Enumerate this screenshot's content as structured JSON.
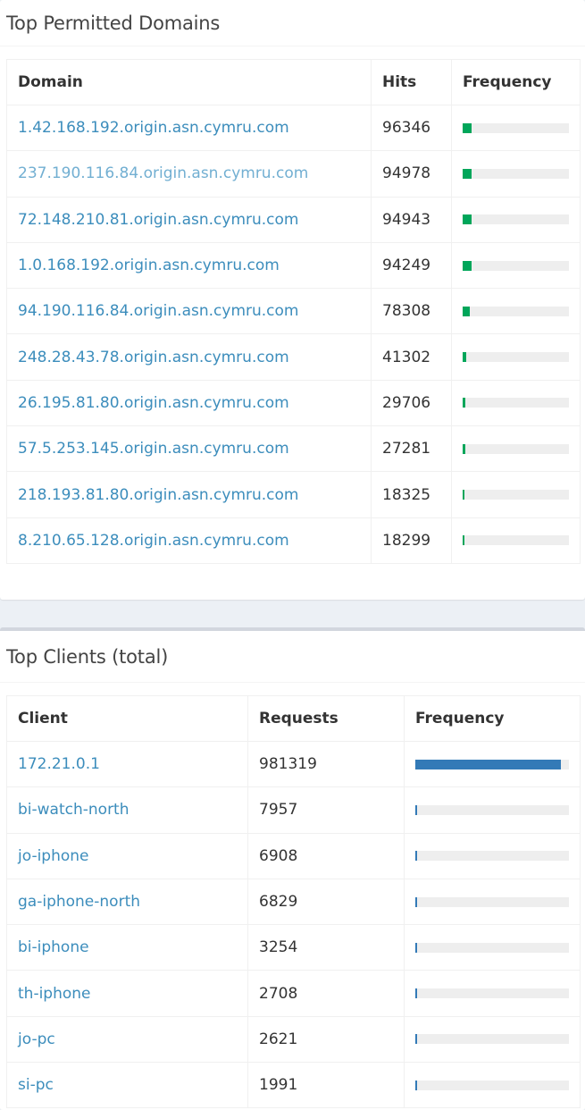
{
  "domains": {
    "title": "Top Permitted Domains",
    "columns": [
      "Domain",
      "Hits",
      "Frequency"
    ],
    "rows": [
      {
        "domain": "1.42.168.192.origin.asn.cymru.com",
        "hits": "96346",
        "frequency_pct": 8.6
      },
      {
        "domain": "237.190.116.84.origin.asn.cymru.com",
        "hits": "94978",
        "frequency_pct": 8.5
      },
      {
        "domain": "72.148.210.81.origin.asn.cymru.com",
        "hits": "94943",
        "frequency_pct": 8.5
      },
      {
        "domain": "1.0.168.192.origin.asn.cymru.com",
        "hits": "94249",
        "frequency_pct": 8.4
      },
      {
        "domain": "94.190.116.84.origin.asn.cymru.com",
        "hits": "78308",
        "frequency_pct": 7.0
      },
      {
        "domain": "248.28.43.78.origin.asn.cymru.com",
        "hits": "41302",
        "frequency_pct": 3.7
      },
      {
        "domain": "26.195.81.80.origin.asn.cymru.com",
        "hits": "29706",
        "frequency_pct": 2.7
      },
      {
        "domain": "57.5.253.145.origin.asn.cymru.com",
        "hits": "27281",
        "frequency_pct": 2.4
      },
      {
        "domain": "218.193.81.80.origin.asn.cymru.com",
        "hits": "18325",
        "frequency_pct": 1.6
      },
      {
        "domain": "8.210.65.128.origin.asn.cymru.com",
        "hits": "18299",
        "frequency_pct": 1.6
      }
    ]
  },
  "clients": {
    "title": "Top Clients (total)",
    "columns": [
      "Client",
      "Requests",
      "Frequency"
    ],
    "rows": [
      {
        "client": "172.21.0.1",
        "requests": "981319",
        "frequency_pct": 95.0
      },
      {
        "client": "bi-watch-north",
        "requests": "7957",
        "frequency_pct": 0.8
      },
      {
        "client": "jo-iphone",
        "requests": "6908",
        "frequency_pct": 0.7
      },
      {
        "client": "ga-iphone-north",
        "requests": "6829",
        "frequency_pct": 0.7
      },
      {
        "client": "bi-iphone",
        "requests": "3254",
        "frequency_pct": 0.3
      },
      {
        "client": "th-iphone",
        "requests": "2708",
        "frequency_pct": 0.3
      },
      {
        "client": "jo-pc",
        "requests": "2621",
        "frequency_pct": 0.3
      },
      {
        "client": "si-pc",
        "requests": "1991",
        "frequency_pct": 0.2
      }
    ]
  },
  "colors": {
    "link": "#3c8dbc",
    "link_visited": "#72afd2",
    "bar_green": "#00a65a",
    "bar_blue": "#337ab7",
    "bar_track": "#eeeeee"
  }
}
